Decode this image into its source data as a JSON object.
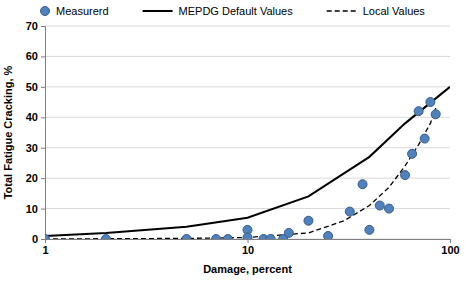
{
  "chart_data": {
    "type": "scatter",
    "x_label": "Damage, percent",
    "y_label": "Total Fatigue Cracking, %",
    "log": "x",
    "xlim": [
      1,
      100
    ],
    "xticks": [
      1,
      10,
      100
    ],
    "ylim": [
      0,
      70
    ],
    "yticks": [
      0,
      10,
      20,
      30,
      40,
      50,
      60,
      70
    ],
    "grid": true,
    "legend": "top",
    "series": [
      {
        "name": "Measurerd",
        "type": "scatter",
        "marker": "circle",
        "color": "#4f81bd",
        "x": [
          1,
          2,
          5,
          7,
          8,
          10,
          10,
          12,
          13,
          15,
          16,
          20,
          25,
          32,
          37,
          40,
          45,
          50,
          60,
          65,
          70,
          75,
          80,
          85
        ],
        "values": [
          0,
          0,
          0,
          0,
          0,
          3,
          0.5,
          0,
          0,
          0,
          2,
          6,
          1,
          9,
          18,
          3,
          11,
          10,
          21,
          28,
          42,
          33,
          45,
          41
        ]
      },
      {
        "name": "MEPDG Default Values",
        "type": "line",
        "line_style": "solid",
        "color": "#000000",
        "x": [
          1,
          2,
          5,
          10,
          20,
          40,
          60,
          100
        ],
        "values": [
          1,
          2,
          4,
          7,
          14,
          27,
          38,
          50
        ]
      },
      {
        "name": "Local Values",
        "type": "line",
        "line_style": "dashed",
        "color": "#000000",
        "x": [
          1,
          5,
          10,
          20,
          30,
          40,
          50,
          60,
          70,
          80,
          85
        ],
        "values": [
          0,
          0.2,
          0.5,
          2,
          6,
          11,
          17,
          24,
          31,
          38,
          43
        ]
      }
    ]
  }
}
